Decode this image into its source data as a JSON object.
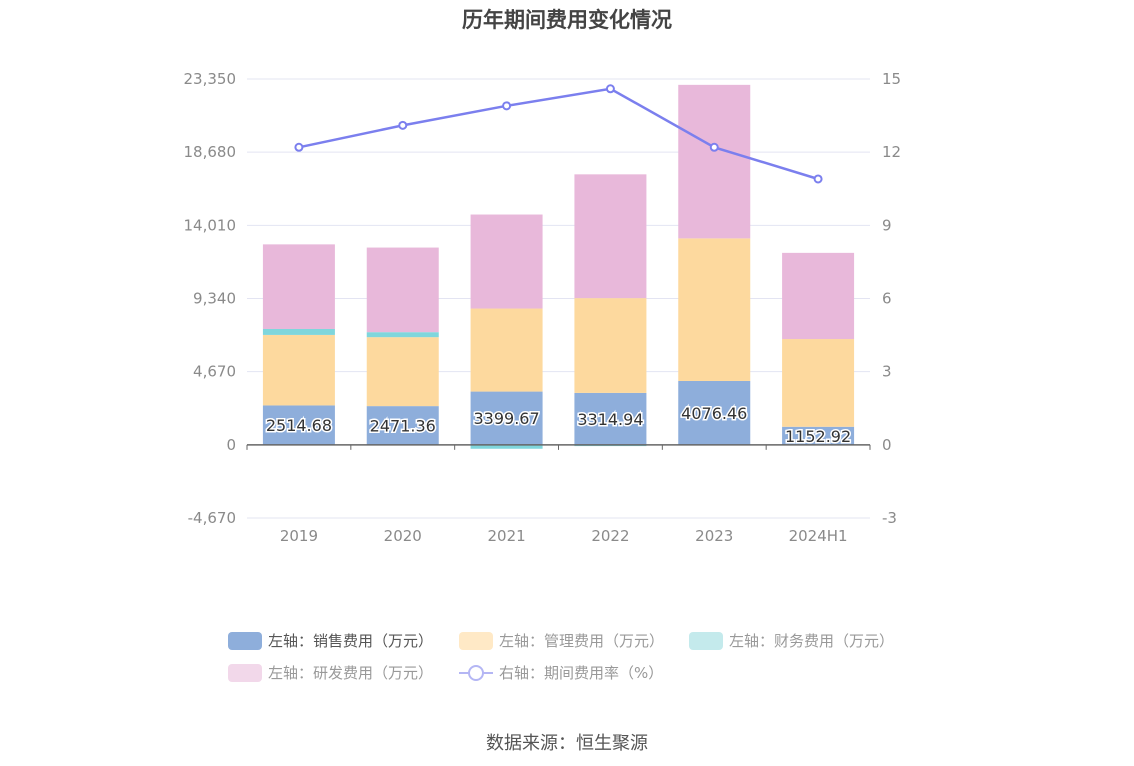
{
  "chart_data": {
    "type": "bar",
    "title": "历年期间费用变化情况",
    "categories": [
      "2019",
      "2020",
      "2021",
      "2022",
      "2023",
      "2024H1"
    ],
    "stacked": true,
    "left_axis": {
      "ylim": [
        -4670,
        23350
      ],
      "ticks": [
        -4670,
        0,
        4670,
        9340,
        14010,
        18680,
        23350
      ],
      "tick_labels": [
        "-4,670",
        "0",
        "4,670",
        "9,340",
        "14,010",
        "18,680",
        "23,350"
      ]
    },
    "right_axis": {
      "ylim": [
        -3,
        15
      ],
      "ticks": [
        -3,
        0,
        3,
        6,
        9,
        12,
        15
      ],
      "tick_labels": [
        "-3",
        "0",
        "3",
        "6",
        "9",
        "12",
        "15"
      ]
    },
    "series": [
      {
        "name": "左轴：销售费用（万元）",
        "axis": "left",
        "type": "bar",
        "color": "#8eaedb",
        "values": [
          2514.68,
          2471.36,
          3399.67,
          3314.94,
          4076.46,
          1152.92
        ],
        "data_labels": [
          "2514.68",
          "2471.36",
          "3399.67",
          "3314.94",
          "4076.46",
          "1152.92"
        ]
      },
      {
        "name": "左轴：管理费用（万元）",
        "axis": "left",
        "type": "bar",
        "color": "#fdd99e",
        "values": [
          4500,
          4400,
          5300,
          6050,
          9100,
          5600
        ]
      },
      {
        "name": "左轴：财务费用（万元）",
        "axis": "left",
        "type": "bar",
        "color": "#7fd6dc",
        "values": [
          380,
          320,
          -250,
          -80,
          -20,
          -30
        ]
      },
      {
        "name": "左轴：研发费用（万元）",
        "axis": "left",
        "type": "bar",
        "color": "#e8b8da",
        "values": [
          5400,
          5400,
          6000,
          7900,
          9800,
          5500
        ]
      },
      {
        "name": "右轴：期间费用率（%）",
        "axis": "right",
        "type": "line",
        "color": "#7b7fee",
        "values": [
          12.2,
          13.1,
          13.9,
          14.6,
          12.2,
          10.9
        ]
      }
    ],
    "grid": true,
    "legend": "bottom"
  },
  "legend": [
    {
      "label": "左轴：销售费用（万元）",
      "color": "#8eaedb",
      "kind": "bar",
      "dim": false
    },
    {
      "label": "左轴：管理费用（万元）",
      "color": "#ffe9c6",
      "kind": "bar",
      "dim": true
    },
    {
      "label": "左轴：财务费用（万元）",
      "color": "#c4eaec",
      "kind": "bar",
      "dim": true
    },
    {
      "label": "左轴：研发费用（万元）",
      "color": "#f2d8ea",
      "kind": "bar",
      "dim": true
    },
    {
      "label": "右轴：期间费用率（%）",
      "color": "#b4b6f4",
      "kind": "line",
      "dim": true
    }
  ],
  "source": "数据来源：恒生聚源"
}
